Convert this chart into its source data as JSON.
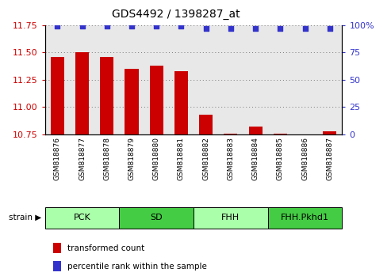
{
  "title": "GDS4492 / 1398287_at",
  "samples": [
    "GSM818876",
    "GSM818877",
    "GSM818878",
    "GSM818879",
    "GSM818880",
    "GSM818881",
    "GSM818882",
    "GSM818883",
    "GSM818884",
    "GSM818885",
    "GSM818886",
    "GSM818887"
  ],
  "bar_values": [
    11.46,
    11.5,
    11.46,
    11.35,
    11.38,
    11.33,
    10.93,
    10.76,
    10.82,
    10.76,
    10.75,
    10.78
  ],
  "percentile_values": [
    99,
    99,
    99,
    99,
    99,
    99,
    97,
    97,
    97,
    97,
    97,
    97
  ],
  "bar_color": "#cc0000",
  "percentile_color": "#3333cc",
  "ylim_left": [
    10.75,
    11.75
  ],
  "ylim_right": [
    0,
    100
  ],
  "yticks_left": [
    10.75,
    11.0,
    11.25,
    11.5,
    11.75
  ],
  "yticks_right": [
    0,
    25,
    50,
    75,
    100
  ],
  "ytick_labels_right": [
    "0",
    "25",
    "50",
    "75",
    "100%"
  ],
  "groups": [
    {
      "label": "PCK",
      "start": 0,
      "end": 3,
      "color": "#aaffaa"
    },
    {
      "label": "SD",
      "start": 3,
      "end": 6,
      "color": "#44cc44"
    },
    {
      "label": "FHH",
      "start": 6,
      "end": 9,
      "color": "#aaffaa"
    },
    {
      "label": "FHH.Pkhd1",
      "start": 9,
      "end": 12,
      "color": "#44cc44"
    }
  ],
  "bar_base": 10.75,
  "grid_color": "#777777",
  "tick_color_left": "#cc0000",
  "tick_color_right": "#3333cc",
  "bg_color": "#e8e8e8",
  "legend_items": [
    {
      "label": "transformed count",
      "color": "#cc0000"
    },
    {
      "label": "percentile rank within the sample",
      "color": "#3333cc"
    }
  ]
}
